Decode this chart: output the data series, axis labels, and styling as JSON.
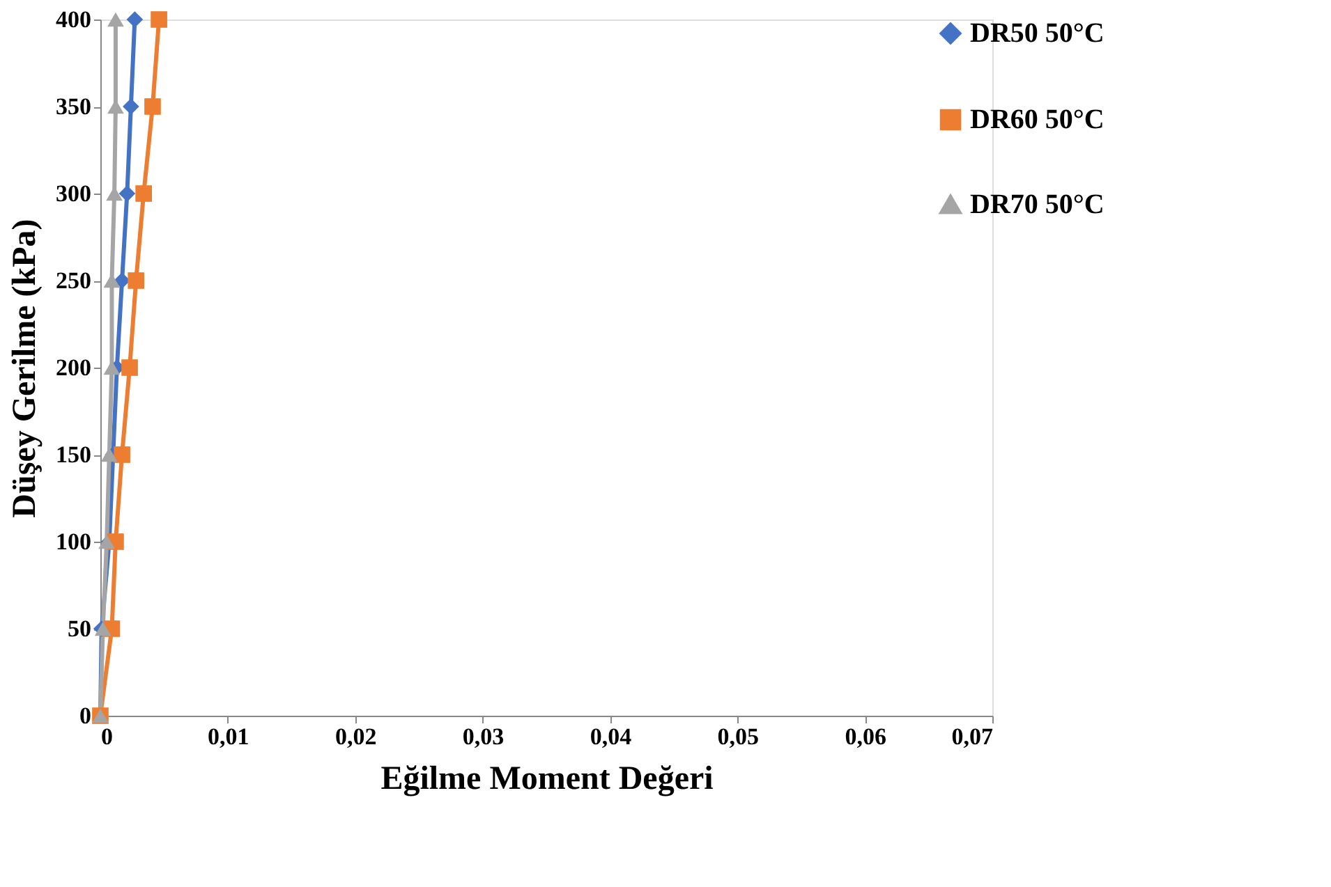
{
  "chart_data": {
    "type": "line",
    "xlabel": "Eğilme Moment Değeri",
    "ylabel": "Düşey Gerilme (kPa)",
    "xlim": [
      0,
      0.07
    ],
    "xticks": [
      {
        "value": 0,
        "label": "0"
      },
      {
        "value": 0.01,
        "label": "0,01"
      },
      {
        "value": 0.02,
        "label": "0,02"
      },
      {
        "value": 0.03,
        "label": "0,03"
      },
      {
        "value": 0.04,
        "label": "0,04"
      },
      {
        "value": 0.05,
        "label": "0,05"
      },
      {
        "value": 0.06,
        "label": "0,06"
      },
      {
        "value": 0.07,
        "label": "0,07"
      }
    ],
    "ylim": [
      0,
      400
    ],
    "yticks": [
      0,
      50,
      100,
      150,
      200,
      250,
      300,
      350,
      400
    ],
    "grid": false,
    "legend": "right",
    "series": [
      {
        "name": "DR50 50°C",
        "color": "#4472c4",
        "marker": "diamond",
        "x": [
          0,
          0.0001,
          0.0007,
          0.001,
          0.0013,
          0.0017,
          0.0021,
          0.0024,
          0.0027
        ],
        "values": [
          0,
          50,
          100,
          150,
          200,
          250,
          300,
          350,
          400
        ]
      },
      {
        "name": "DR60 50°C",
        "color": "#ed7d31",
        "marker": "square",
        "x": [
          0,
          0.0009,
          0.0012,
          0.0017,
          0.0023,
          0.0028,
          0.0034,
          0.0041,
          0.0046
        ],
        "values": [
          0,
          50,
          100,
          150,
          200,
          250,
          300,
          350,
          400
        ]
      },
      {
        "name": "DR70 50°C",
        "color": "#a5a5a5",
        "marker": "triangle",
        "x": [
          0,
          0.0002,
          0.0005,
          0.0007,
          0.0009,
          0.0009,
          0.0011,
          0.0012,
          0.0012
        ],
        "values": [
          0,
          50,
          100,
          150,
          200,
          250,
          300,
          350,
          400
        ]
      }
    ]
  }
}
